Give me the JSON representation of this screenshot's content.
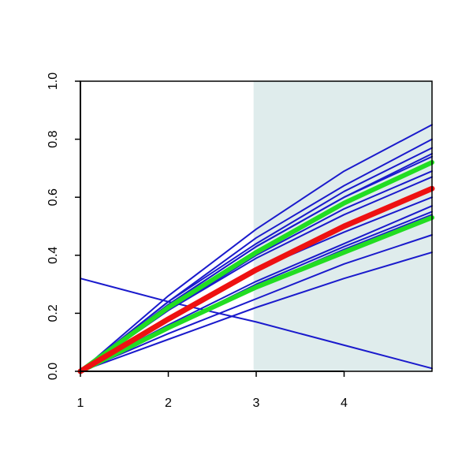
{
  "chart_data": {
    "type": "line",
    "x": [
      1,
      2,
      3,
      4,
      5
    ],
    "xlim": [
      1,
      5
    ],
    "xticks": [
      1,
      2,
      3,
      4
    ],
    "ylim": [
      0,
      1
    ],
    "yticks": [
      {
        "value": 0,
        "label": "0.0"
      },
      {
        "value": 0.2,
        "label": "0.2"
      },
      {
        "value": 0.4,
        "label": "0.4"
      },
      {
        "value": 0.6,
        "label": "0.6"
      },
      {
        "value": 0.8,
        "label": "0.8"
      },
      {
        "value": 1,
        "label": "1.0"
      }
    ],
    "shade_from": 2.97,
    "shade_color": "#dfecec",
    "series": [
      {
        "color": "#1a1acc",
        "line_width": 2,
        "values": [
          0,
          0.26,
          0.49,
          0.69,
          0.85
        ]
      },
      {
        "color": "#1a1acc",
        "line_width": 2,
        "values": [
          0,
          0.24,
          0.46,
          0.64,
          0.8
        ]
      },
      {
        "color": "#1a1acc",
        "line_width": 2,
        "values": [
          0,
          0.24,
          0.44,
          0.62,
          0.77
        ]
      },
      {
        "color": "#1a1acc",
        "line_width": 2,
        "values": [
          0,
          0.23,
          0.43,
          0.6,
          0.75
        ]
      },
      {
        "color": "#1a1acc",
        "line_width": 2,
        "values": [
          0,
          0.23,
          0.43,
          0.6,
          0.74
        ]
      },
      {
        "color": "#1a1acc",
        "line_width": 2,
        "values": [
          0,
          0.21,
          0.4,
          0.56,
          0.69
        ]
      },
      {
        "color": "#1a1acc",
        "line_width": 2,
        "values": [
          0,
          0.21,
          0.39,
          0.54,
          0.67
        ]
      },
      {
        "color": "#1a1acc",
        "line_width": 2,
        "values": [
          0,
          0.18,
          0.35,
          0.48,
          0.6
        ]
      },
      {
        "color": "#1a1acc",
        "line_width": 2,
        "values": [
          0,
          0.16,
          0.31,
          0.44,
          0.57
        ]
      },
      {
        "color": "#1a1acc",
        "line_width": 2,
        "values": [
          0,
          0.15,
          0.3,
          0.43,
          0.55
        ]
      },
      {
        "color": "#1a1acc",
        "line_width": 2,
        "values": [
          0,
          0.15,
          0.29,
          0.42,
          0.54
        ]
      },
      {
        "color": "#1a1acc",
        "line_width": 2,
        "values": [
          0,
          0.13,
          0.25,
          0.37,
          0.47
        ]
      },
      {
        "color": "#1a1acc",
        "line_width": 2,
        "values": [
          0,
          0.11,
          0.22,
          0.32,
          0.41
        ]
      },
      {
        "color": "#1a1acc",
        "line_width": 2,
        "values": [
          0.32,
          0.24,
          0.17,
          0.09,
          0.01
        ]
      },
      {
        "color": "#22dd22",
        "line_width": 6,
        "values": [
          0,
          0.22,
          0.41,
          0.58,
          0.72
        ]
      },
      {
        "color": "#22dd22",
        "line_width": 6,
        "values": [
          0,
          0.15,
          0.29,
          0.41,
          0.53
        ]
      },
      {
        "color": "#ee1111",
        "line_width": 7,
        "values": [
          0,
          0.18,
          0.35,
          0.5,
          0.63
        ]
      }
    ]
  }
}
